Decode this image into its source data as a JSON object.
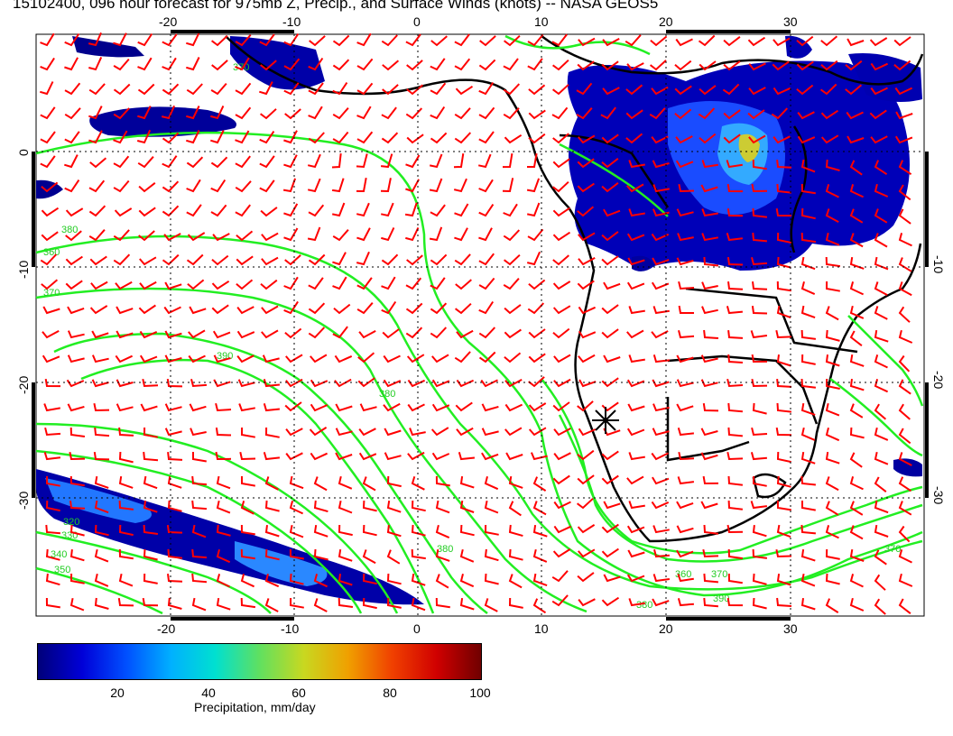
{
  "title": "15102400, 096 hour forecast for 975mb Z, Precip., and Surface Winds (knots) -- NASA GEOS5",
  "axes": {
    "lon_ticks": [
      "-20",
      "-10",
      "0",
      "10",
      "20",
      "30"
    ],
    "lat_ticks": [
      "0",
      "-10",
      "-20",
      "-30"
    ]
  },
  "contour_labels": [
    "370",
    "380",
    "390",
    "380",
    "370",
    "360",
    "350",
    "340",
    "330",
    "320",
    "360",
    "370",
    "380",
    "390",
    "370",
    "380"
  ],
  "colorbar": {
    "ticks": [
      "20",
      "40",
      "60",
      "80",
      "100"
    ],
    "label": "Precipitation, mm/day"
  },
  "colors": {
    "wind_barbs": "#ff0000",
    "height_contours": "#22ee22",
    "coastlines": "#000000"
  }
}
